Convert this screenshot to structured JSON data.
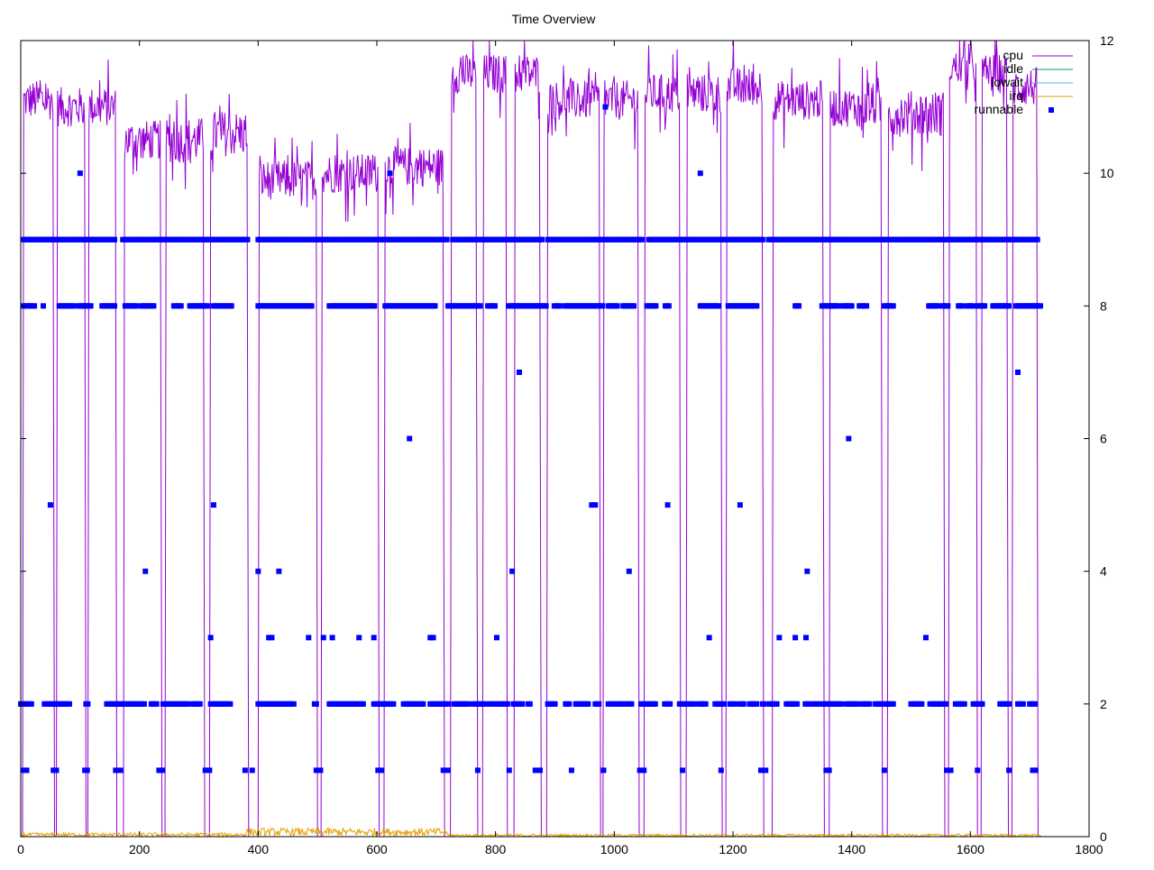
{
  "chart_data": {
    "type": "line",
    "title": "Time Overview",
    "xlabel": "",
    "ylabel": "",
    "xlim": [
      0,
      1800
    ],
    "ylim": [
      0,
      12
    ],
    "x_ticks": [
      0,
      200,
      400,
      600,
      800,
      1000,
      1200,
      1400,
      1600,
      1800
    ],
    "y_ticks": [
      0,
      2,
      4,
      6,
      8,
      10,
      12
    ],
    "y_axis_side": "right",
    "grid": false,
    "legend_position": "top-right",
    "series": [
      {
        "name": "cpu",
        "style": "line",
        "color": "#9400d3",
        "segments": [
          {
            "start": 5,
            "end": 55,
            "mean": 11.1,
            "amp": 0.3
          },
          {
            "start": 62,
            "end": 108,
            "mean": 11.0,
            "amp": 0.3
          },
          {
            "start": 115,
            "end": 160,
            "mean": 11.0,
            "amp": 0.3
          },
          {
            "start": 175,
            "end": 236,
            "mean": 10.5,
            "amp": 0.3
          },
          {
            "start": 245,
            "end": 308,
            "mean": 10.5,
            "amp": 0.35
          },
          {
            "start": 320,
            "end": 382,
            "mean": 10.6,
            "amp": 0.35
          },
          {
            "start": 402,
            "end": 498,
            "mean": 9.9,
            "amp": 0.3
          },
          {
            "start": 508,
            "end": 602,
            "mean": 10.0,
            "amp": 0.3
          },
          {
            "start": 614,
            "end": 712,
            "mean": 10.1,
            "amp": 0.3
          },
          {
            "start": 726,
            "end": 768,
            "mean": 11.5,
            "amp": 0.3
          },
          {
            "start": 780,
            "end": 818,
            "mean": 11.5,
            "amp": 0.3
          },
          {
            "start": 833,
            "end": 875,
            "mean": 11.5,
            "amp": 0.3
          },
          {
            "start": 888,
            "end": 975,
            "mean": 11.1,
            "amp": 0.3
          },
          {
            "start": 983,
            "end": 1040,
            "mean": 11.1,
            "amp": 0.3
          },
          {
            "start": 1052,
            "end": 1110,
            "mean": 11.2,
            "amp": 0.3
          },
          {
            "start": 1123,
            "end": 1180,
            "mean": 11.2,
            "amp": 0.3
          },
          {
            "start": 1190,
            "end": 1250,
            "mean": 11.3,
            "amp": 0.3
          },
          {
            "start": 1268,
            "end": 1352,
            "mean": 11.1,
            "amp": 0.3
          },
          {
            "start": 1364,
            "end": 1450,
            "mean": 11.0,
            "amp": 0.3
          },
          {
            "start": 1462,
            "end": 1555,
            "mean": 10.9,
            "amp": 0.35
          },
          {
            "start": 1565,
            "end": 1610,
            "mean": 11.6,
            "amp": 0.25
          },
          {
            "start": 1620,
            "end": 1662,
            "mean": 11.5,
            "amp": 0.3
          },
          {
            "start": 1672,
            "end": 1712,
            "mean": 11.3,
            "amp": 0.3
          }
        ]
      },
      {
        "name": "idle",
        "style": "line",
        "color": "#009e73",
        "values": [
          [
            0,
            0
          ],
          [
            1720,
            0
          ]
        ]
      },
      {
        "name": "iowait",
        "style": "line",
        "color": "#56b4e9",
        "values": [
          [
            0,
            0
          ],
          [
            1720,
            0
          ]
        ]
      },
      {
        "name": "irq",
        "style": "line",
        "color": "#e69f00",
        "noise": [
          {
            "start": 0,
            "end": 380,
            "mean": 0.03,
            "amp": 0.03
          },
          {
            "start": 380,
            "end": 720,
            "mean": 0.07,
            "amp": 0.06
          },
          {
            "start": 720,
            "end": 1720,
            "mean": 0.02,
            "amp": 0.02
          }
        ]
      },
      {
        "name": "runnable",
        "style": "points",
        "color": "#0000ff",
        "rows": [
          {
            "y": 9,
            "ranges": [
              [
                5,
                160
              ],
              [
                172,
                382
              ],
              [
                400,
                720
              ],
              [
                728,
                880
              ],
              [
                888,
                1048
              ],
              [
                1058,
                1250
              ],
              [
                1260,
                1715
              ]
            ]
          },
          {
            "y": 8,
            "ranges": [
              [
                5,
                25
              ],
              [
                38,
                40
              ],
              [
                65,
                90
              ],
              [
                97,
                120
              ],
              [
                137,
                160
              ],
              [
                176,
                195
              ],
              [
                203,
                225
              ],
              [
                258,
                270
              ],
              [
                285,
                315
              ],
              [
                325,
                355
              ],
              [
                400,
                490
              ],
              [
                520,
                545
              ],
              [
                548,
                597
              ],
              [
                614,
                700
              ],
              [
                720,
                775
              ],
              [
                787,
                800
              ],
              [
                822,
                885
              ],
              [
                899,
                910
              ],
              [
                917,
                980
              ],
              [
                990,
                1005
              ],
              [
                1015,
                1035
              ],
              [
                1055,
                1070
              ],
              [
                1086,
                1092
              ],
              [
                1145,
                1160
              ],
              [
                1164,
                1176
              ],
              [
                1192,
                1240
              ],
              [
                1305,
                1312
              ],
              [
                1350,
                1378
              ],
              [
                1385,
                1400
              ],
              [
                1413,
                1425
              ],
              [
                1455,
                1470
              ],
              [
                1530,
                1545
              ],
              [
                1553,
                1562
              ],
              [
                1580,
                1588
              ],
              [
                1595,
                1605
              ],
              [
                1612,
                1626
              ],
              [
                1638,
                1665
              ],
              [
                1677,
                1700
              ],
              [
                1700,
                1718
              ]
            ]
          },
          {
            "y": 2,
            "ranges": [
              [
                0,
                20
              ],
              [
                40,
                82
              ],
              [
                110,
                115
              ],
              [
                145,
                210
              ],
              [
                220,
                230
              ],
              [
                240,
                282
              ],
              [
                290,
                302
              ],
              [
                320,
                355
              ],
              [
                400,
                460
              ],
              [
                495,
                500
              ],
              [
                520,
                578
              ],
              [
                595,
                630
              ],
              [
                645,
                680
              ],
              [
                690,
                720
              ],
              [
                730,
                755
              ],
              [
                762,
                785
              ],
              [
                790,
                800
              ],
              [
                805,
                820
              ],
              [
                830,
                845
              ],
              [
                855,
                860
              ],
              [
                888,
                900
              ],
              [
                918,
                925
              ],
              [
                935,
                958
              ],
              [
                968,
                975
              ],
              [
                990,
                1000
              ],
              [
                1005,
                1015
              ],
              [
                1020,
                1030
              ],
              [
                1045,
                1070
              ],
              [
                1085,
                1095
              ],
              [
                1110,
                1120
              ],
              [
                1125,
                1135
              ],
              [
                1142,
                1155
              ],
              [
                1170,
                1185
              ],
              [
                1195,
                1205
              ],
              [
                1212,
                1220
              ],
              [
                1228,
                1240
              ],
              [
                1250,
                1255
              ],
              [
                1262,
                1275
              ],
              [
                1290,
                1308
              ],
              [
                1322,
                1330
              ],
              [
                1335,
                1345
              ],
              [
                1350,
                1385
              ],
              [
                1392,
                1410
              ],
              [
                1418,
                1430
              ],
              [
                1440,
                1470
              ],
              [
                1500,
                1520
              ],
              [
                1532,
                1560
              ],
              [
                1575,
                1590
              ],
              [
                1605,
                1620
              ],
              [
                1650,
                1665
              ],
              [
                1680,
                1690
              ],
              [
                1700,
                1710
              ]
            ]
          }
        ],
        "points": [
          [
            5,
            1
          ],
          [
            10,
            1
          ],
          [
            55,
            1
          ],
          [
            60,
            1
          ],
          [
            108,
            1
          ],
          [
            112,
            1
          ],
          [
            160,
            1
          ],
          [
            168,
            1
          ],
          [
            233,
            1
          ],
          [
            239,
            1
          ],
          [
            311,
            1
          ],
          [
            318,
            1
          ],
          [
            378,
            1
          ],
          [
            390,
            1
          ],
          [
            498,
            1
          ],
          [
            505,
            1
          ],
          [
            602,
            1
          ],
          [
            608,
            1
          ],
          [
            712,
            1
          ],
          [
            720,
            1
          ],
          [
            770,
            1
          ],
          [
            823,
            1
          ],
          [
            867,
            1
          ],
          [
            875,
            1
          ],
          [
            928,
            1
          ],
          [
            982,
            1
          ],
          [
            1043,
            1
          ],
          [
            1050,
            1
          ],
          [
            1115,
            1
          ],
          [
            1180,
            1
          ],
          [
            1247,
            1
          ],
          [
            1255,
            1
          ],
          [
            1357,
            1
          ],
          [
            1362,
            1
          ],
          [
            1455,
            1
          ],
          [
            1560,
            1
          ],
          [
            1567,
            1
          ],
          [
            1612,
            1
          ],
          [
            1665,
            1
          ],
          [
            1705,
            1
          ],
          [
            1710,
            1
          ],
          [
            100,
            10
          ],
          [
            622,
            10
          ],
          [
            1145,
            10
          ],
          [
            985,
            11
          ],
          [
            50,
            5
          ],
          [
            325,
            5
          ],
          [
            962,
            5
          ],
          [
            968,
            5
          ],
          [
            1090,
            5
          ],
          [
            1212,
            5
          ],
          [
            210,
            4
          ],
          [
            400,
            4
          ],
          [
            435,
            4
          ],
          [
            828,
            4
          ],
          [
            1025,
            4
          ],
          [
            1325,
            4
          ],
          [
            320,
            3
          ],
          [
            418,
            3
          ],
          [
            423,
            3
          ],
          [
            485,
            3
          ],
          [
            510,
            3
          ],
          [
            525,
            3
          ],
          [
            570,
            3
          ],
          [
            595,
            3
          ],
          [
            690,
            3
          ],
          [
            695,
            3
          ],
          [
            802,
            3
          ],
          [
            1160,
            3
          ],
          [
            1278,
            3
          ],
          [
            1305,
            3
          ],
          [
            1323,
            3
          ],
          [
            1525,
            3
          ],
          [
            840,
            7
          ],
          [
            1680,
            7
          ],
          [
            655,
            6
          ],
          [
            1395,
            6
          ]
        ]
      }
    ]
  }
}
